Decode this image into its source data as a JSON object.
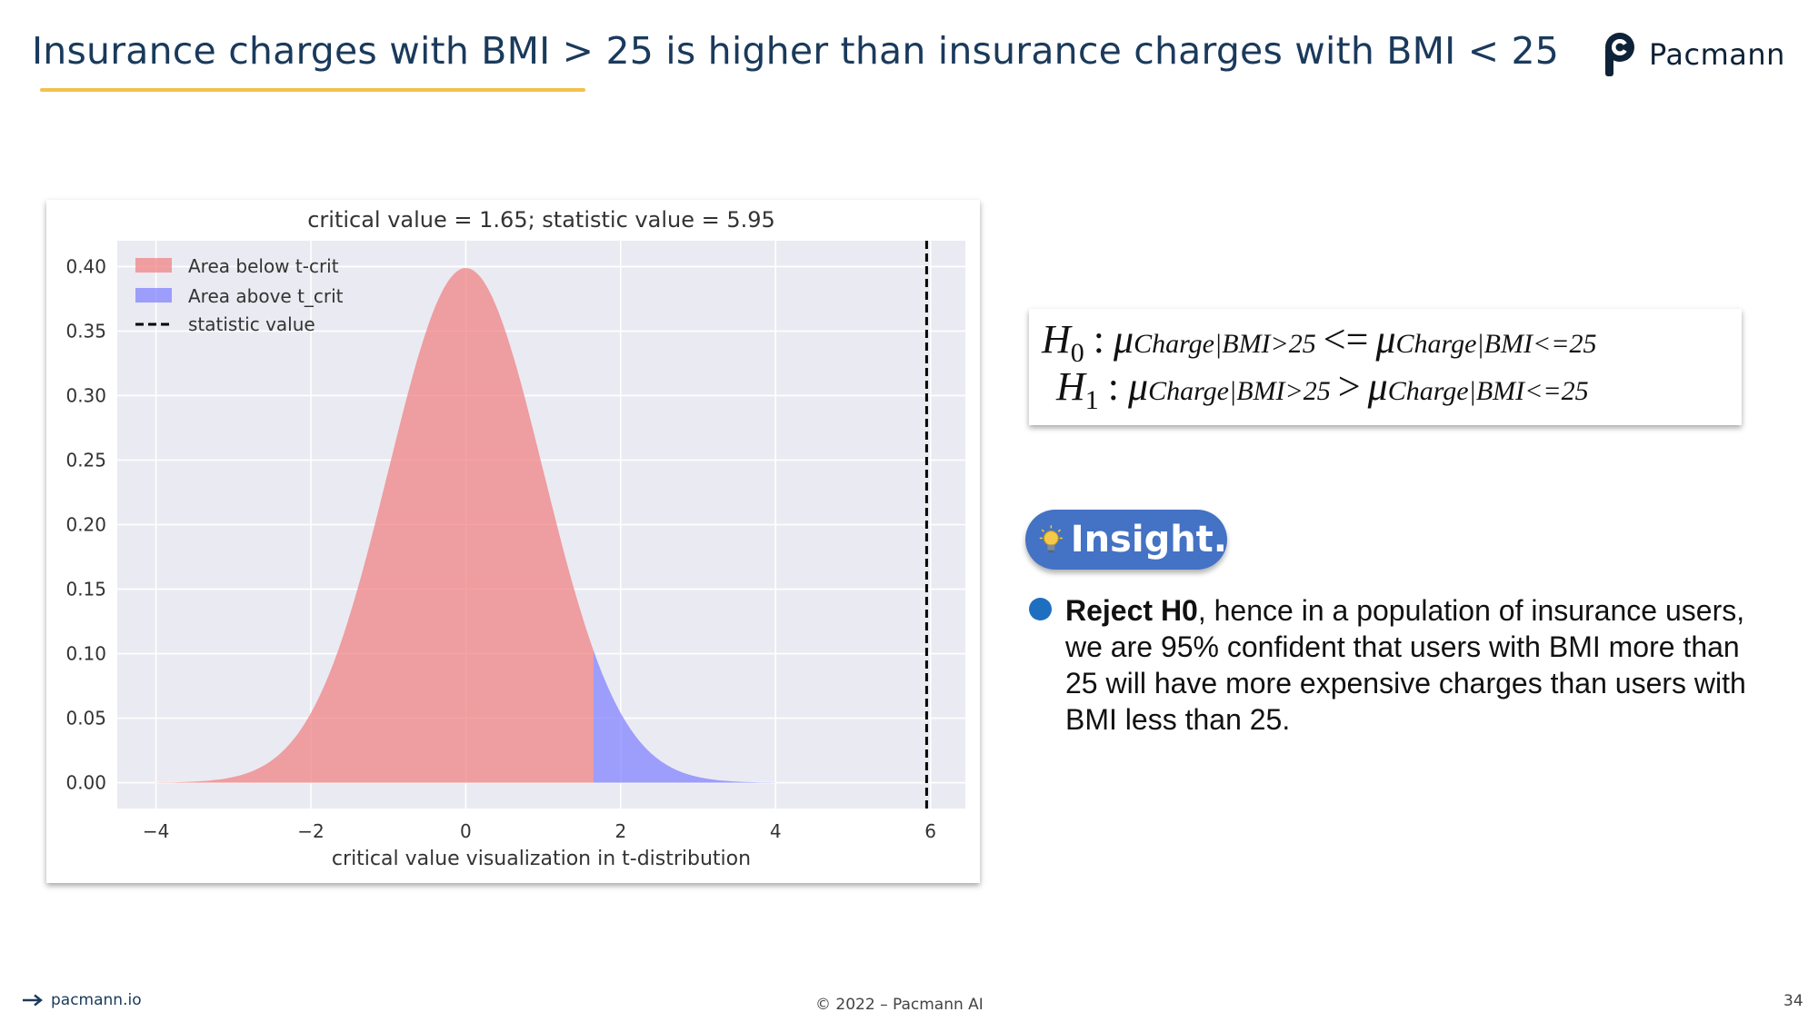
{
  "slide": {
    "title": "Insurance charges with BMI > 25 is higher than insurance charges with BMI < 25",
    "logo_text": "Pacmann",
    "footer_left": "pacmann.io",
    "footer_center": "© 2022 – Pacmann AI",
    "page_number": "34"
  },
  "hypothesis": {
    "h0": {
      "symbol": "H",
      "index": "0",
      "mu": "μ",
      "left_sub": "Charge|BMI>25",
      "relation": "<=",
      "right_sub": "Charge|BMI<=25"
    },
    "h1": {
      "symbol": "H",
      "index": "1",
      "mu": "μ",
      "left_sub": "Charge|BMI>25",
      "relation": ">",
      "right_sub": "Charge|BMI<=25"
    }
  },
  "insight": {
    "label": "Insight.",
    "bold": "Reject H0",
    "text": ", hence in a population of insurance users, we are 95% confident that users with BMI more than 25 will have more expensive charges than users with BMI less than 25."
  },
  "chart_data": {
    "type": "area",
    "title": "critical value = 1.65; statistic value = 5.95",
    "xlabel": "critical value visualization in t-distribution",
    "ylabel": "",
    "xlim": [
      -4.5,
      6.45
    ],
    "ylim": [
      -0.02,
      0.42
    ],
    "x_ticks": [
      -4,
      -2,
      0,
      2,
      4,
      6
    ],
    "x_tick_labels": [
      "−4",
      "−2",
      "0",
      "2",
      "4",
      "6"
    ],
    "y_ticks": [
      0.0,
      0.05,
      0.1,
      0.15,
      0.2,
      0.25,
      0.3,
      0.35,
      0.4
    ],
    "y_tick_labels": [
      "0.00",
      "0.05",
      "0.10",
      "0.15",
      "0.20",
      "0.25",
      "0.30",
      "0.35",
      "0.40"
    ],
    "grid": true,
    "legend_position": "top-left",
    "critical_value": 1.65,
    "statistic_value": 5.95,
    "series": [
      {
        "name": "Area below t-crit",
        "color": "#f08080",
        "x": [
          -4.0,
          -3.5,
          -3.0,
          -2.5,
          -2.0,
          -1.5,
          -1.0,
          -0.5,
          0.0,
          0.5,
          1.0,
          1.5,
          1.65
        ],
        "y": [
          0.0,
          0.001,
          0.004,
          0.017,
          0.054,
          0.13,
          0.242,
          0.352,
          0.399,
          0.352,
          0.242,
          0.13,
          0.102
        ]
      },
      {
        "name": "Area above t_crit",
        "color": "#8080ff",
        "x": [
          1.65,
          2.0,
          2.5,
          3.0,
          3.5,
          4.0
        ],
        "y": [
          0.102,
          0.054,
          0.017,
          0.004,
          0.001,
          0.0
        ]
      },
      {
        "name": "statistic value",
        "color": "#000000",
        "x": [
          5.95,
          5.95
        ],
        "y": [
          -0.02,
          0.42
        ]
      }
    ]
  }
}
